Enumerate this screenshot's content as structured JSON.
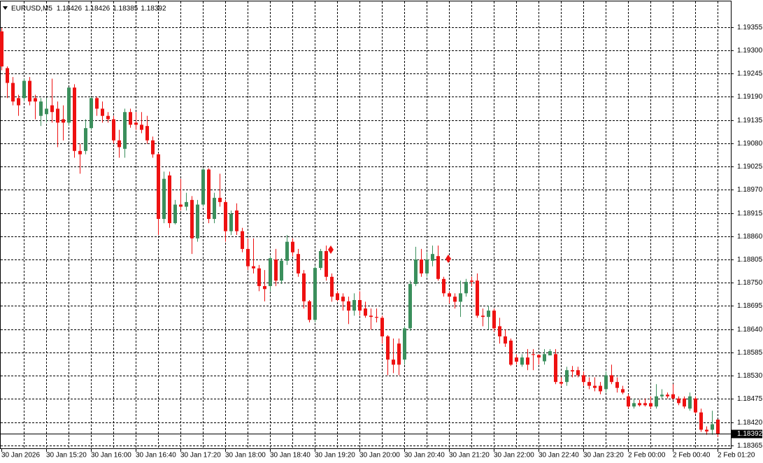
{
  "chart_data": {
    "type": "candlestick",
    "title": "EURUSD,M5",
    "up_color": "#3b8f5c",
    "down_color": "#ee1111",
    "grid": true,
    "ylim": [
      1.18358,
      1.19416
    ],
    "yticks": [
      1.19355,
      {
        "value": 1.193,
        "label": "1.19300"
      },
      1.19245,
      {
        "value": 1.1919,
        "label": "1.19190"
      },
      1.19135,
      {
        "value": 1.1908,
        "label": "1.19080"
      },
      1.19025,
      {
        "value": 1.1897,
        "label": "1.18970"
      },
      1.18915,
      {
        "value": 1.1886,
        "label": "1.18860"
      },
      1.18805,
      {
        "value": 1.1875,
        "label": "1.18750"
      },
      1.18695,
      {
        "value": 1.1864,
        "label": "1.18640"
      },
      1.18585,
      {
        "value": 1.1853,
        "label": "1.18530"
      },
      1.18475,
      {
        "value": 1.1842,
        "label": "1.18420"
      },
      1.18365
    ],
    "categories": [
      "30 Jan 2026",
      null,
      null,
      null,
      null,
      null,
      null,
      null,
      "30 Jan 15:20",
      null,
      null,
      null,
      null,
      null,
      null,
      null,
      "30 Jan 16:00",
      null,
      null,
      null,
      null,
      null,
      null,
      null,
      "30 Jan 16:40",
      null,
      null,
      null,
      null,
      null,
      null,
      null,
      "30 Jan 17:20",
      null,
      null,
      null,
      null,
      null,
      null,
      null,
      "30 Jan 18:00",
      null,
      null,
      null,
      null,
      null,
      null,
      null,
      "30 Jan 18:40",
      null,
      null,
      null,
      null,
      null,
      null,
      null,
      "30 Jan 19:20",
      null,
      null,
      null,
      null,
      null,
      null,
      null,
      "30 Jan 20:00",
      null,
      null,
      null,
      null,
      null,
      null,
      null,
      "30 Jan 20:40",
      null,
      null,
      null,
      null,
      null,
      null,
      null,
      "30 Jan 21:20",
      null,
      null,
      null,
      null,
      null,
      null,
      null,
      "30 Jan 22:00",
      null,
      null,
      null,
      null,
      null,
      null,
      null,
      "30 Jan 22:40",
      null,
      null,
      null,
      null,
      null,
      null,
      null,
      "30 Jan 23:20",
      null,
      null,
      null,
      null,
      null,
      null,
      null,
      "2 Feb 00:00",
      null,
      null,
      null,
      null,
      null,
      null,
      null,
      "2 Feb 00:40",
      null,
      null,
      null,
      null,
      null,
      null,
      null,
      "2 Feb 01:20"
    ],
    "open": [
      1.19345,
      1.19258,
      1.19223,
      1.19187,
      1.19187,
      1.19228,
      1.19187,
      1.19145,
      1.19149,
      1.1917,
      1.19162,
      1.19137,
      1.19129,
      1.19212,
      1.19062,
      1.19062,
      1.19116,
      1.19187,
      1.19162,
      1.19145,
      1.19137,
      1.19087,
      1.19067,
      1.19154,
      1.19129,
      1.19124,
      1.19121,
      1.19087,
      1.19054,
      1.18901,
      1.19004,
      1.18891,
      1.18935,
      1.1893,
      1.18946,
      1.18855,
      1.18935,
      1.19018,
      1.18901,
      1.18951,
      1.18941,
      1.18872,
      1.18921,
      1.18872,
      1.1883,
      1.18789,
      1.18784,
      1.18742,
      1.18742,
      1.18805,
      1.18755,
      1.18802,
      1.18847,
      1.18818,
      1.18772,
      1.18706,
      1.18662,
      1.18785,
      1.18825,
      1.18764,
      1.18725,
      1.18717,
      1.18706,
      1.18684,
      1.18709,
      1.18689,
      1.18672,
      1.18669,
      1.18667,
      1.18623,
      1.18568,
      1.18606,
      1.18568,
      1.18642,
      1.18747,
      1.18805,
      1.18772,
      1.18802,
      1.18813,
      1.18759,
      1.18725,
      1.18717,
      1.18705,
      1.18725,
      1.18755,
      1.18755,
      1.18672,
      1.18669,
      1.18684,
      1.18647,
      1.18623,
      1.18613,
      1.18573,
      1.18556,
      1.18573,
      1.18581,
      1.18579,
      1.18564,
      1.18578,
      1.18581,
      1.18515,
      1.18515,
      1.18543,
      1.18543,
      1.18531,
      1.18515,
      1.18506,
      1.18506,
      1.18498,
      1.18531,
      1.18515,
      1.18498,
      1.18481,
      1.18457,
      1.18465,
      1.18465,
      1.18465,
      1.18457,
      1.18481,
      1.18485,
      1.18486,
      1.18476,
      1.18476,
      1.18452,
      1.18476,
      1.18443,
      1.18402,
      1.18402,
      1.18426
    ],
    "high": [
      1.19353,
      1.19262,
      1.19237,
      1.19195,
      1.19233,
      1.19237,
      1.19195,
      1.19187,
      1.19187,
      1.19233,
      1.19179,
      1.1917,
      1.19212,
      1.1922,
      1.19079,
      1.19137,
      1.1919,
      1.1919,
      1.19179,
      1.19154,
      1.19145,
      1.19112,
      1.19162,
      1.19162,
      1.19154,
      1.19154,
      1.19145,
      1.19096,
      1.19057,
      1.19013,
      1.19013,
      1.18946,
      1.18996,
      1.18963,
      1.18955,
      1.18946,
      1.19021,
      1.19021,
      1.18963,
      1.19008,
      1.18946,
      1.18921,
      1.18938,
      1.1888,
      1.18855,
      1.18855,
      1.18792,
      1.1878,
      1.18813,
      1.1883,
      1.18808,
      1.18863,
      1.18855,
      1.1883,
      1.1878,
      1.18709,
      1.18789,
      1.1883,
      1.18838,
      1.18772,
      1.1873,
      1.18725,
      1.18717,
      1.18725,
      1.1873,
      1.18705,
      1.18689,
      1.18689,
      1.18672,
      1.18626,
      1.18618,
      1.18618,
      1.18647,
      1.18755,
      1.18835,
      1.1883,
      1.18822,
      1.18838,
      1.18838,
      1.18764,
      1.1873,
      1.18725,
      1.18755,
      1.18759,
      1.18764,
      1.18772,
      1.18689,
      1.18696,
      1.18689,
      1.18667,
      1.18639,
      1.18618,
      1.18581,
      1.18581,
      1.18593,
      1.18593,
      1.18581,
      1.18593,
      1.18593,
      1.18593,
      1.18526,
      1.18551,
      1.18553,
      1.18551,
      1.1854,
      1.18526,
      1.18526,
      1.18515,
      1.1854,
      1.18556,
      1.18526,
      1.18506,
      1.18486,
      1.18476,
      1.18473,
      1.18476,
      1.18481,
      1.1851,
      1.18498,
      1.1849,
      1.1851,
      1.18481,
      1.18481,
      1.1849,
      1.18481,
      1.18452,
      1.1841,
      1.18447,
      1.18426
    ],
    "low": [
      1.19253,
      1.19187,
      1.1917,
      1.19145,
      1.19179,
      1.1917,
      1.19137,
      1.19121,
      1.19129,
      1.19129,
      1.19071,
      1.19087,
      1.19121,
      1.19046,
      1.19008,
      1.19054,
      1.19112,
      1.19145,
      1.19129,
      1.19129,
      1.19079,
      1.19046,
      1.19046,
      1.19117,
      1.19112,
      1.19104,
      1.19079,
      1.19046,
      1.18863,
      1.18891,
      1.1888,
      1.18888,
      1.18921,
      1.18921,
      1.18818,
      1.18847,
      1.1893,
      1.18891,
      1.18891,
      1.1893,
      1.18847,
      1.18863,
      1.18863,
      1.18822,
      1.1878,
      1.18772,
      1.1873,
      1.18706,
      1.1873,
      1.18742,
      1.18747,
      1.18792,
      1.18813,
      1.18764,
      1.18689,
      1.18656,
      1.18656,
      1.1878,
      1.18755,
      1.18705,
      1.18706,
      1.18684,
      1.18652,
      1.18672,
      1.18672,
      1.18667,
      1.18639,
      1.18656,
      1.18606,
      1.18531,
      1.18536,
      1.18531,
      1.18556,
      1.18636,
      1.18742,
      1.18764,
      1.18764,
      1.18789,
      1.18755,
      1.18717,
      1.18701,
      1.18689,
      1.18669,
      1.18717,
      1.18742,
      1.18667,
      1.18647,
      1.18639,
      1.18634,
      1.18606,
      1.18598,
      1.18553,
      1.18556,
      1.18551,
      1.18543,
      1.18543,
      1.18556,
      1.18556,
      1.18579,
      1.1851,
      1.18506,
      1.18506,
      1.18526,
      1.18526,
      1.18506,
      1.18498,
      1.18493,
      1.18486,
      1.1849,
      1.1851,
      1.1849,
      1.18486,
      1.18452,
      1.18452,
      1.18457,
      1.18457,
      1.18452,
      1.18452,
      1.18476,
      1.18476,
      1.18473,
      1.1846,
      1.18452,
      1.18447,
      1.1844,
      1.18397,
      1.1839,
      1.1839,
      1.18385
    ],
    "close": [
      1.19262,
      1.19223,
      1.19179,
      1.1917,
      1.19228,
      1.19179,
      1.19179,
      1.19179,
      1.19162,
      1.19154,
      1.19129,
      1.19129,
      1.19212,
      1.19062,
      1.19054,
      1.19116,
      1.19187,
      1.19162,
      1.19145,
      1.19137,
      1.19087,
      1.19071,
      1.19154,
      1.19124,
      1.19124,
      1.19112,
      1.19087,
      1.19054,
      1.18901,
      1.18996,
      1.18891,
      1.18935,
      1.1893,
      1.18941,
      1.18855,
      1.18935,
      1.19018,
      1.18901,
      1.18951,
      1.18941,
      1.18872,
      1.18913,
      1.18872,
      1.1883,
      1.18789,
      1.18784,
      1.18742,
      1.18735,
      1.18808,
      1.18755,
      1.18802,
      1.18847,
      1.18822,
      1.18772,
      1.18706,
      1.18662,
      1.18785,
      1.18825,
      1.18764,
      1.18717,
      1.18709,
      1.18706,
      1.18684,
      1.18709,
      1.18684,
      1.18672,
      1.18669,
      1.18667,
      1.18623,
      1.18568,
      1.18556,
      1.18556,
      1.18642,
      1.18747,
      1.18805,
      1.18772,
      1.18805,
      1.18818,
      1.18759,
      1.18725,
      1.18717,
      1.18705,
      1.18725,
      1.18752,
      1.18752,
      1.18672,
      1.18669,
      1.18684,
      1.18642,
      1.18623,
      1.18606,
      1.18556,
      1.18563,
      1.18573,
      1.18556,
      1.18579,
      1.18573,
      1.18581,
      1.18588,
      1.18515,
      1.18511,
      1.18543,
      1.1854,
      1.18531,
      1.18515,
      1.18506,
      1.18501,
      1.18493,
      1.18531,
      1.18515,
      1.18501,
      1.1849,
      1.18457,
      1.18465,
      1.1846,
      1.1846,
      1.18457,
      1.18481,
      1.18485,
      1.18481,
      1.18476,
      1.18465,
      1.18457,
      1.18481,
      1.18443,
      1.18402,
      1.18398,
      1.18415,
      1.18392
    ]
  }
}
